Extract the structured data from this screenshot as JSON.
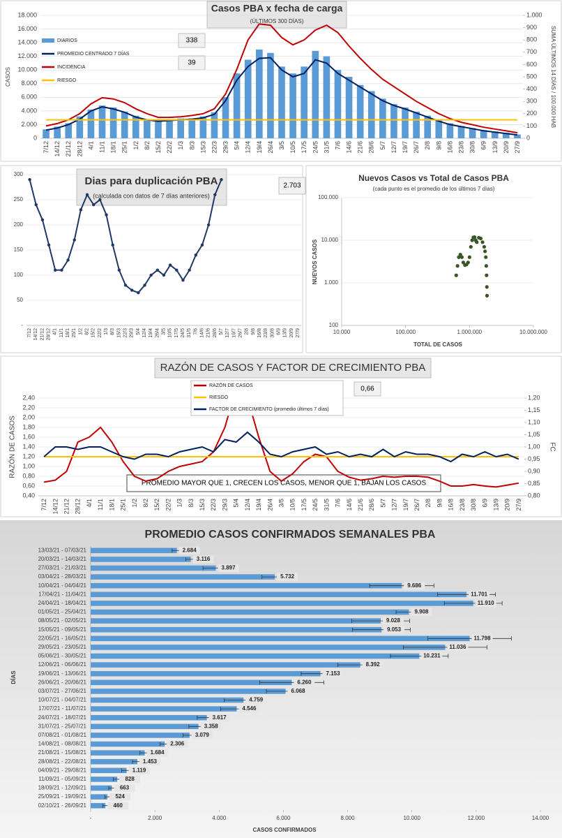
{
  "chart_data": [
    {
      "type": "combo",
      "title": "Casos PBA x fecha de carga",
      "subtitle": "(ÚLTIMOS 300 DÍAS)",
      "y_label": "CASOS",
      "y2_label": "SUMA ÚLTIMOS 14 DÍAS / 100.000 HAB",
      "annotations": [
        "338",
        "39"
      ],
      "legend": "upper left",
      "grid": true,
      "categories": [
        "7/12",
        "14/12",
        "21/12",
        "28/12",
        "4/1",
        "11/1",
        "18/1",
        "25/1",
        "1/2",
        "8/2",
        "15/2",
        "22/2",
        "1/3",
        "8/3",
        "15/3",
        "22/3",
        "29/3",
        "5/4",
        "12/4",
        "19/4",
        "26/4",
        "3/5",
        "10/5",
        "17/5",
        "24/5",
        "31/5",
        "7/6",
        "14/6",
        "21/6",
        "28/6",
        "5/7",
        "12/7",
        "19/7",
        "26/7",
        "2/8",
        "9/8",
        "16/8",
        "23/8",
        "30/8",
        "6/9",
        "13/9",
        "20/9",
        "27/9"
      ],
      "ylim": [
        0,
        18000
      ],
      "yticks": [
        0,
        {
          "value": 2000,
          "label": "2.000"
        },
        {
          "value": 4000,
          "label": "4.000"
        },
        {
          "value": 6000,
          "label": "6.000"
        },
        {
          "value": 8000,
          "label": "8.000"
        },
        {
          "value": 10000,
          "label": "10.000"
        },
        {
          "value": 12000,
          "label": "12.000"
        },
        {
          "value": 14000,
          "label": "14.000"
        },
        {
          "value": 16000,
          "label": "16.000"
        },
        {
          "value": 18000,
          "label": "18.000"
        }
      ],
      "y2lim": [
        0,
        1000
      ],
      "y2ticks": [
        0,
        100,
        200,
        300,
        400,
        500,
        600,
        700,
        800,
        900,
        {
          "value": 1000,
          "label": "1.000"
        }
      ],
      "series": [
        {
          "name": "DIARIOS",
          "type": "bar",
          "color": "#5b9bd5",
          "values": [
            1300,
            1700,
            2200,
            3200,
            4200,
            4800,
            4500,
            3900,
            3300,
            2800,
            2600,
            2700,
            2900,
            2900,
            3200,
            3800,
            6000,
            9500,
            11500,
            13000,
            12500,
            10500,
            9500,
            10500,
            12800,
            12000,
            10000,
            9000,
            7800,
            6900,
            5800,
            5000,
            4500,
            3900,
            3300,
            2700,
            2200,
            1800,
            1500,
            1200,
            1000,
            800,
            550
          ]
        },
        {
          "name": "PROMEDIO CENTRADO 7 DÍAS",
          "type": "line",
          "color": "#002060",
          "values": [
            1200,
            1500,
            2000,
            2800,
            4000,
            4600,
            4300,
            3800,
            3100,
            2700,
            2500,
            2600,
            2700,
            2800,
            3000,
            3500,
            5500,
            8500,
            10500,
            11700,
            11800,
            10000,
            9000,
            9500,
            11500,
            11000,
            9500,
            8500,
            7500,
            6500,
            5500,
            4800,
            4300,
            3700,
            3100,
            2500,
            2000,
            1700,
            1400,
            1100,
            900,
            700,
            500
          ]
        },
        {
          "name": "INCIDENCIA",
          "type": "line",
          "axis": "y2",
          "color": "#c00000",
          "values": [
            100,
            120,
            150,
            200,
            280,
            330,
            320,
            290,
            240,
            200,
            170,
            170,
            175,
            185,
            200,
            240,
            360,
            560,
            800,
            930,
            920,
            820,
            760,
            800,
            880,
            920,
            860,
            750,
            650,
            560,
            480,
            420,
            360,
            300,
            250,
            200,
            160,
            130,
            110,
            90,
            75,
            60,
            45
          ]
        },
        {
          "name": "RIESGO",
          "type": "line",
          "axis": "y2",
          "color": "#ffc000",
          "values": [
            150,
            150,
            150,
            150,
            150,
            150,
            150,
            150,
            150,
            150,
            150,
            150,
            150,
            150,
            150,
            150,
            150,
            150,
            150,
            150,
            150,
            150,
            150,
            150,
            150,
            150,
            150,
            150,
            150,
            150,
            150,
            150,
            150,
            150,
            150,
            150,
            150,
            150,
            150,
            150,
            150,
            150,
            150
          ]
        }
      ]
    },
    {
      "type": "line",
      "title": "Dias para duplicación PBA",
      "subtitle": "(calculada con datos de 7 días anteriores)",
      "annotation": "2.703",
      "categories": [
        "7/12",
        "14/12",
        "21/12",
        "28/12",
        "4/1",
        "11/1",
        "18/1",
        "25/1",
        "1/2",
        "8/2",
        "15/2",
        "22/2",
        "1/3",
        "8/3",
        "15/3",
        "22/3",
        "29/3",
        "5/4",
        "12/4",
        "19/4",
        "26/4",
        "3/5",
        "10/5",
        "17/5",
        "24/5",
        "31/5",
        "7/6",
        "14/6",
        "21/6",
        "28/6",
        "5/7",
        "12/7",
        "19/7",
        "26/7",
        "2/8",
        "9/8",
        "16/8",
        "23/8",
        "30/8",
        "6/9",
        "13/9",
        "20/9",
        "27/9"
      ],
      "ylim": [
        0,
        300
      ],
      "yticks": [
        {
          "value": 0,
          "label": "-"
        },
        50,
        100,
        150,
        200,
        250,
        300
      ],
      "grid": true,
      "color": "#1f3864",
      "markers": true,
      "values": [
        290,
        240,
        210,
        160,
        110,
        110,
        130,
        170,
        230,
        260,
        240,
        250,
        220,
        160,
        110,
        80,
        70,
        65,
        80,
        100,
        110,
        100,
        120,
        110,
        90,
        110,
        140,
        160,
        200,
        260,
        290,
        null,
        null,
        null,
        null,
        null,
        null,
        null,
        null,
        null,
        null,
        null,
        null
      ]
    },
    {
      "type": "scatter",
      "title": "Nuevos Casos vs Total de Casos PBA",
      "subtitle": "(cada punto es el promedio de los últimos 7 días)",
      "x_label": "TOTAL DE CASOS",
      "y_label": "NUEVOS CASOS",
      "log_x": true,
      "log_y": true,
      "grid": true,
      "color": "#375623",
      "xlim": [
        10000,
        10000000
      ],
      "xticks": [
        {
          "value": 10000,
          "label": "10.000"
        },
        {
          "value": 100000,
          "label": "100.000"
        },
        {
          "value": 1000000,
          "label": "1.000.000"
        },
        {
          "value": 10000000,
          "label": "10.000.000"
        }
      ],
      "ylim": [
        100,
        100000
      ],
      "yticks": [
        100,
        {
          "value": 1000,
          "label": "1.000"
        },
        {
          "value": 10000,
          "label": "10.000"
        },
        {
          "value": 100000,
          "label": "100.000"
        }
      ],
      "x": [
        620000,
        650000,
        680000,
        720000,
        760000,
        800000,
        850000,
        900000,
        950000,
        1000000,
        1050000,
        1100000,
        1150000,
        1200000,
        1250000,
        1300000,
        1400000,
        1500000,
        1600000,
        1700000,
        1750000,
        1800000,
        1830000,
        1850000,
        1870000,
        1880000
      ],
      "y": [
        1500,
        2500,
        4000,
        4600,
        4000,
        3000,
        2600,
        2700,
        3000,
        4000,
        7000,
        10000,
        11700,
        11800,
        10000,
        9000,
        11500,
        11000,
        9000,
        7000,
        5500,
        4000,
        2500,
        1500,
        800,
        500
      ]
    },
    {
      "type": "line",
      "title": "RAZÓN DE CASOS Y FACTOR DE CRECIMIENTO PBA",
      "annotation": "0,66",
      "note": "PROMEDIO MAYOR QUE 1, CRECEN LOS CASOS, MENOR QUE 1, BAJAN LOS CASOS",
      "y_label": "RAZÓN DE CASOS",
      "y2_label": "FC",
      "legend": "upper center",
      "grid": true,
      "categories": [
        "7/12",
        "14/12",
        "21/12",
        "28/12",
        "4/1",
        "11/1",
        "18/1",
        "25/1",
        "1/2",
        "8/2",
        "15/2",
        "22/2",
        "1/3",
        "8/3",
        "15/3",
        "22/3",
        "29/3",
        "5/4",
        "12/4",
        "19/4",
        "26/4",
        "3/5",
        "10/5",
        "17/5",
        "24/5",
        "31/5",
        "7/6",
        "14/6",
        "21/6",
        "28/6",
        "5/7",
        "12/7",
        "19/7",
        "26/7",
        "2/8",
        "9/8",
        "16/8",
        "23/8",
        "30/8",
        "6/9",
        "13/9",
        "20/9",
        "27/9"
      ],
      "ylim": [
        0.4,
        2.4
      ],
      "yticks": [
        {
          "value": 0.4,
          "label": "0,40"
        },
        {
          "value": 0.6,
          "label": "0,60"
        },
        {
          "value": 0.8,
          "label": "0,80"
        },
        {
          "value": 1.0,
          "label": "1,00"
        },
        {
          "value": 1.2,
          "label": "1,20"
        },
        {
          "value": 1.4,
          "label": "1,40"
        },
        {
          "value": 1.6,
          "label": "1,60"
        },
        {
          "value": 1.8,
          "label": "1,80"
        },
        {
          "value": 2.0,
          "label": "2,00"
        },
        {
          "value": 2.2,
          "label": "2,20"
        },
        {
          "value": 2.4,
          "label": "2,40"
        }
      ],
      "y2lim": [
        0.8,
        1.2
      ],
      "y2ticks": [
        {
          "value": 0.8,
          "label": "0,80"
        },
        {
          "value": 0.85,
          "label": "0,85"
        },
        {
          "value": 0.9,
          "label": "0,90"
        },
        {
          "value": 0.95,
          "label": "0,95"
        },
        {
          "value": 1.0,
          "label": "1,00"
        },
        {
          "value": 1.05,
          "label": "1,05"
        },
        {
          "value": 1.1,
          "label": "1,10"
        },
        {
          "value": 1.15,
          "label": "1,15"
        },
        {
          "value": 1.2,
          "label": "1,20"
        }
      ],
      "series": [
        {
          "name": "RAZÓN DE CASOS",
          "type": "line",
          "color": "#c00000",
          "values": [
            0.68,
            0.72,
            0.9,
            1.5,
            1.6,
            1.8,
            1.5,
            1.1,
            0.8,
            0.7,
            0.75,
            0.9,
            1.0,
            1.05,
            1.1,
            1.3,
            1.8,
            2.6,
            2.4,
            1.6,
            0.9,
            0.7,
            0.85,
            1.1,
            1.25,
            1.2,
            0.9,
            0.78,
            0.72,
            0.75,
            0.8,
            0.78,
            0.8,
            0.8,
            0.78,
            0.7,
            0.6,
            0.6,
            0.63,
            0.6,
            0.58,
            0.62,
            0.66
          ]
        },
        {
          "name": "RIESGO",
          "type": "line",
          "color": "#ffc000",
          "values": [
            1.2,
            1.2,
            1.2,
            1.2,
            1.2,
            1.2,
            1.2,
            1.2,
            1.2,
            1.2,
            1.2,
            1.2,
            1.2,
            1.2,
            1.2,
            1.2,
            1.2,
            1.2,
            1.2,
            1.2,
            1.2,
            1.2,
            1.2,
            1.2,
            1.2,
            1.2,
            1.2,
            1.2,
            1.2,
            1.2,
            1.2,
            1.2,
            1.2,
            1.2,
            1.2,
            1.2,
            1.2,
            1.2,
            1.2,
            1.2,
            1.2,
            1.2,
            1.2
          ]
        },
        {
          "name": "FACTOR DE CRECIMIENTO (promedio últimos 7 días)",
          "type": "line",
          "axis": "y2",
          "color": "#002060",
          "values": [
            0.96,
            1.0,
            1.0,
            0.99,
            1.0,
            1.0,
            0.98,
            0.96,
            0.95,
            0.97,
            0.97,
            0.96,
            0.98,
            0.99,
            1.0,
            0.98,
            1.03,
            1.02,
            1.06,
            1.02,
            0.97,
            0.96,
            0.98,
            0.99,
            1.0,
            0.97,
            0.98,
            0.96,
            0.97,
            0.96,
            0.99,
            0.96,
            0.98,
            0.97,
            0.97,
            0.96,
            0.94,
            0.97,
            0.96,
            0.98,
            0.96,
            0.97,
            0.95
          ]
        }
      ]
    },
    {
      "type": "bar",
      "orientation": "horizontal",
      "title": "PROMEDIO CASOS CONFIRMADOS SEMANALES PBA",
      "x_label": "CASOS CONFIRMADOS",
      "y_label": "DÍAS",
      "color": "#5b9bd5",
      "categories": [
        "13/03/21 - 07/03/21",
        "20/03/21 - 14/03/21",
        "27/03/21 - 21/03/21",
        "03/04/21 - 28/03/21",
        "10/04/21 - 04/04/21",
        "17/04/21 - 11/04/21",
        "24/04/21 - 18/04/21",
        "01/05/21 - 25/04/21",
        "08/05/21 - 02/05/21",
        "15/05/21 - 09/05/21",
        "22/05/21 - 16/05/21",
        "29/05/21 - 23/05/21",
        "05/06/21 - 30/05/21",
        "12/06/21 - 06/06/21",
        "19/06/21 - 13/06/21",
        "26/06/21 - 20/06/21",
        "03/07/21 - 27/06/21",
        "10/07/21 - 04/07/21",
        "17/07/21 - 11/07/21",
        "24/07/21 - 18/07/21",
        "31/07/21 - 25/07/21",
        "07/08/21 - 01/08/21",
        "14/08/21 - 08/08/21",
        "21/08/21 - 15/08/21",
        "28/08/21 - 22/08/21",
        "04/09/21 - 29/08/21",
        "11/09/21 - 05/09/21",
        "18/09/21 - 12/09/21",
        "25/09/21 - 19/09/21",
        "02/10/21 - 26/09/21"
      ],
      "values": [
        2684,
        3116,
        3897,
        5732,
        9686,
        11701,
        11910,
        9908,
        9028,
        9053,
        11798,
        11036,
        10231,
        8392,
        7153,
        6260,
        6068,
        4759,
        4546,
        3617,
        3358,
        3079,
        2306,
        1684,
        1453,
        1119,
        828,
        663,
        524,
        460
      ],
      "value_labels": [
        "2.684",
        "3.116",
        "3.897",
        "5.732",
        "9.686",
        "11.701",
        "11.910",
        "9.908",
        "9.028",
        "9.053",
        "11.798",
        "11.036",
        "10.231",
        "8.392",
        "7.153",
        "6.260",
        "6.068",
        "4.759",
        "4.546",
        "3.617",
        "3.358",
        "3.079",
        "2.306",
        "1.684",
        "1.453",
        "1.119",
        "828",
        "663",
        "524",
        "460"
      ],
      "errors": [
        150,
        150,
        400,
        400,
        1000,
        900,
        900,
        400,
        900,
        900,
        1300,
        1300,
        900,
        700,
        600,
        1000,
        600,
        600,
        500,
        300,
        300,
        200,
        150,
        150,
        150,
        150,
        120,
        100,
        80,
        80
      ],
      "xlim": [
        0,
        14000
      ],
      "xticks": [
        {
          "value": 0,
          "label": "-"
        },
        {
          "value": 2000,
          "label": "2.000"
        },
        {
          "value": 4000,
          "label": "4.000"
        },
        {
          "value": 6000,
          "label": "6.000"
        },
        {
          "value": 8000,
          "label": "8.000"
        },
        {
          "value": 10000,
          "label": "10.000"
        },
        {
          "value": 12000,
          "label": "12.000"
        },
        {
          "value": 14000,
          "label": "14.000"
        }
      ]
    }
  ]
}
